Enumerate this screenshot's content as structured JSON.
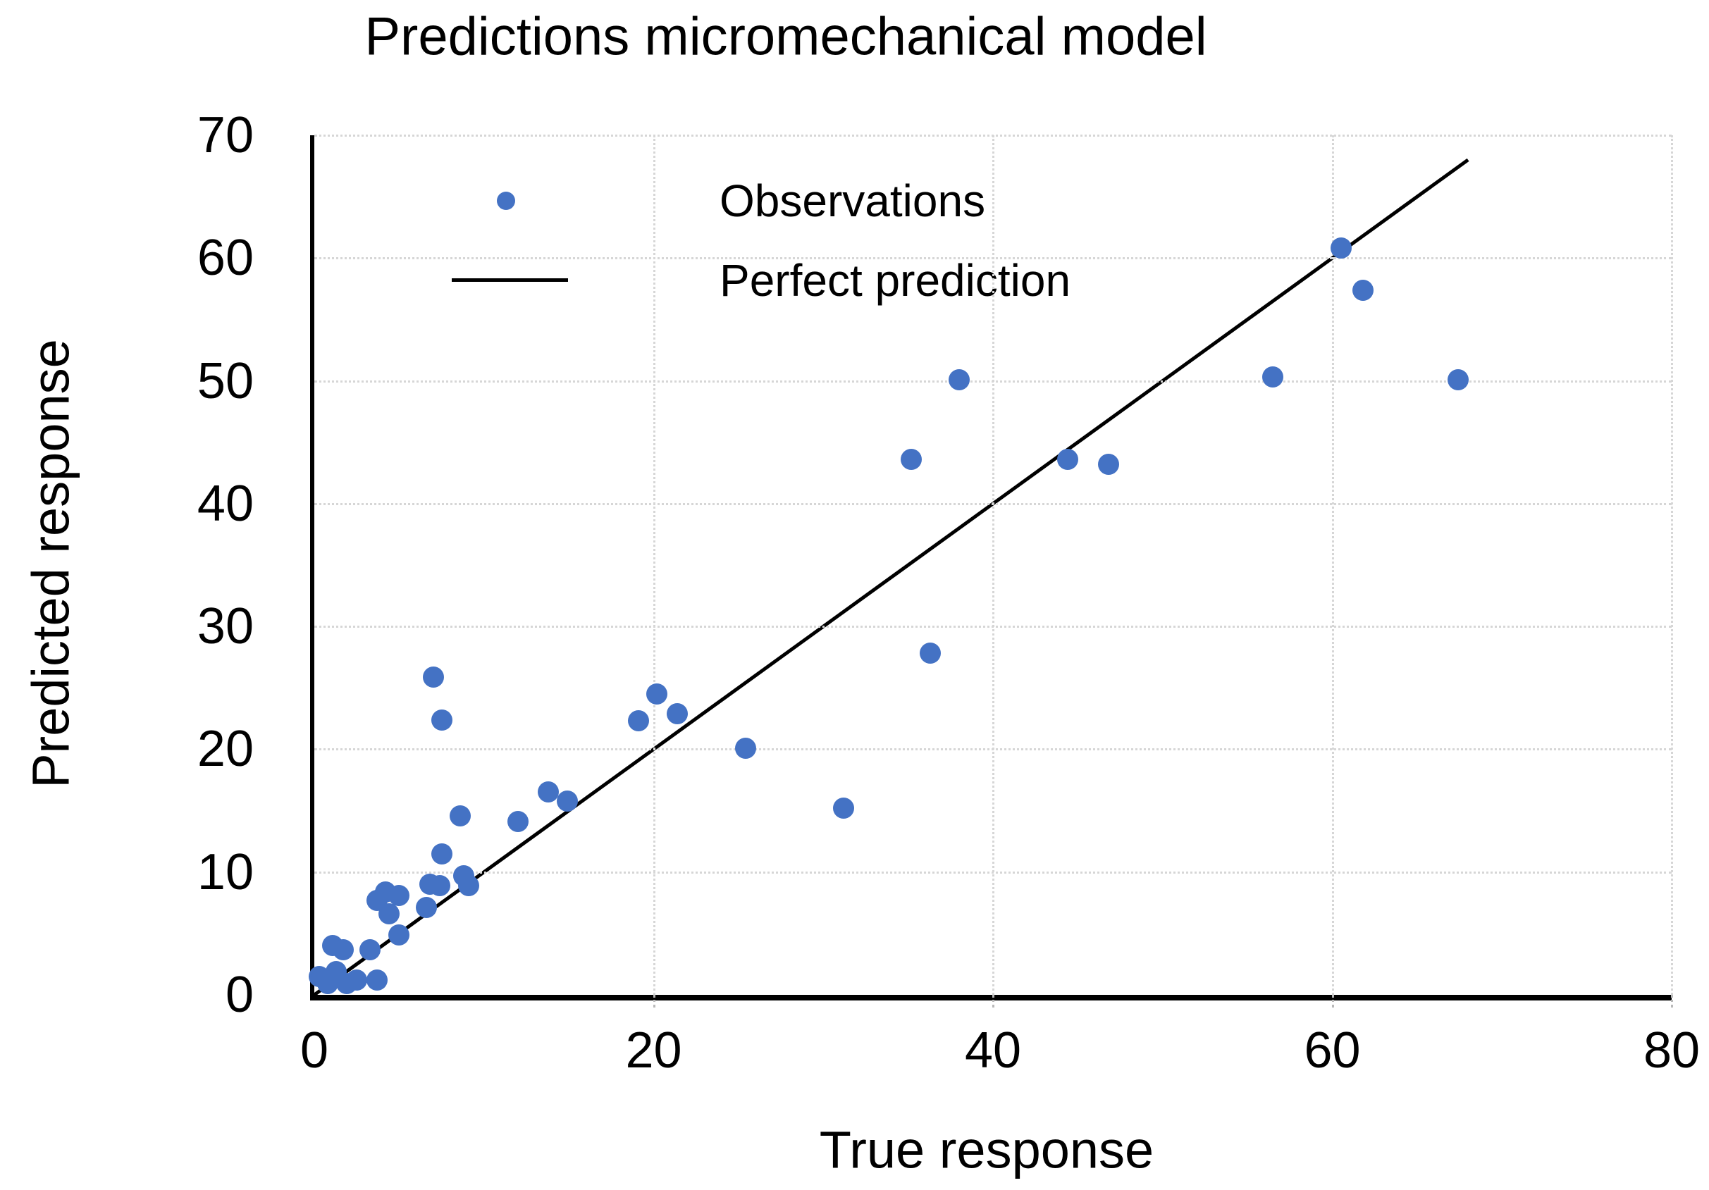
{
  "title": "Predictions micromechanical model",
  "axes": {
    "x": {
      "label": "True response",
      "min": 0,
      "max": 80,
      "ticks": [
        0,
        20,
        40,
        60,
        80
      ]
    },
    "y": {
      "label": "Predicted response",
      "min": 0,
      "max": 70,
      "ticks": [
        0,
        10,
        20,
        30,
        40,
        50,
        60,
        70
      ]
    }
  },
  "colors": {
    "marker": "#4472C4",
    "line": "#000000",
    "grid": "#D9D9D9",
    "axis": "#000000",
    "background": "#FFFFFF"
  },
  "chart_data": {
    "type": "scatter",
    "title": "Predictions micromechanical model",
    "xlabel": "True response",
    "ylabel": "Predicted response",
    "xlim": [
      0,
      80
    ],
    "ylim": [
      0,
      70
    ],
    "grid": true,
    "legend_position": "top-left-inside",
    "series": [
      {
        "name": "Observations",
        "type": "scatter",
        "color": "#4472C4",
        "points": [
          [
            0.3,
            1.5
          ],
          [
            0.8,
            0.9
          ],
          [
            1.3,
            1.9
          ],
          [
            1.9,
            0.9
          ],
          [
            2.5,
            1.2
          ],
          [
            1.1,
            4.0
          ],
          [
            1.7,
            3.7
          ],
          [
            3.3,
            3.7
          ],
          [
            3.7,
            1.2
          ],
          [
            5.0,
            4.9
          ],
          [
            4.4,
            6.6
          ],
          [
            3.7,
            7.7
          ],
          [
            4.2,
            8.4
          ],
          [
            5.0,
            8.1
          ],
          [
            6.6,
            7.1
          ],
          [
            6.8,
            9.0
          ],
          [
            7.4,
            8.9
          ],
          [
            8.8,
            9.7
          ],
          [
            9.1,
            8.9
          ],
          [
            7.5,
            11.5
          ],
          [
            8.6,
            14.6
          ],
          [
            12.0,
            14.1
          ],
          [
            13.8,
            16.5
          ],
          [
            14.9,
            15.8
          ],
          [
            7.0,
            25.9
          ],
          [
            7.5,
            22.4
          ],
          [
            19.1,
            22.3
          ],
          [
            20.2,
            24.5
          ],
          [
            21.4,
            22.9
          ],
          [
            25.4,
            20.1
          ],
          [
            31.2,
            15.2
          ],
          [
            36.3,
            27.8
          ],
          [
            35.2,
            43.6
          ],
          [
            38.0,
            50.1
          ],
          [
            44.4,
            43.6
          ],
          [
            46.8,
            43.2
          ],
          [
            56.5,
            50.3
          ],
          [
            60.5,
            60.8
          ],
          [
            61.8,
            57.4
          ],
          [
            67.4,
            50.1
          ]
        ]
      },
      {
        "name": "Perfect prediction",
        "type": "line",
        "color": "#000000",
        "points": [
          [
            0,
            0
          ],
          [
            68,
            68
          ]
        ]
      }
    ]
  }
}
